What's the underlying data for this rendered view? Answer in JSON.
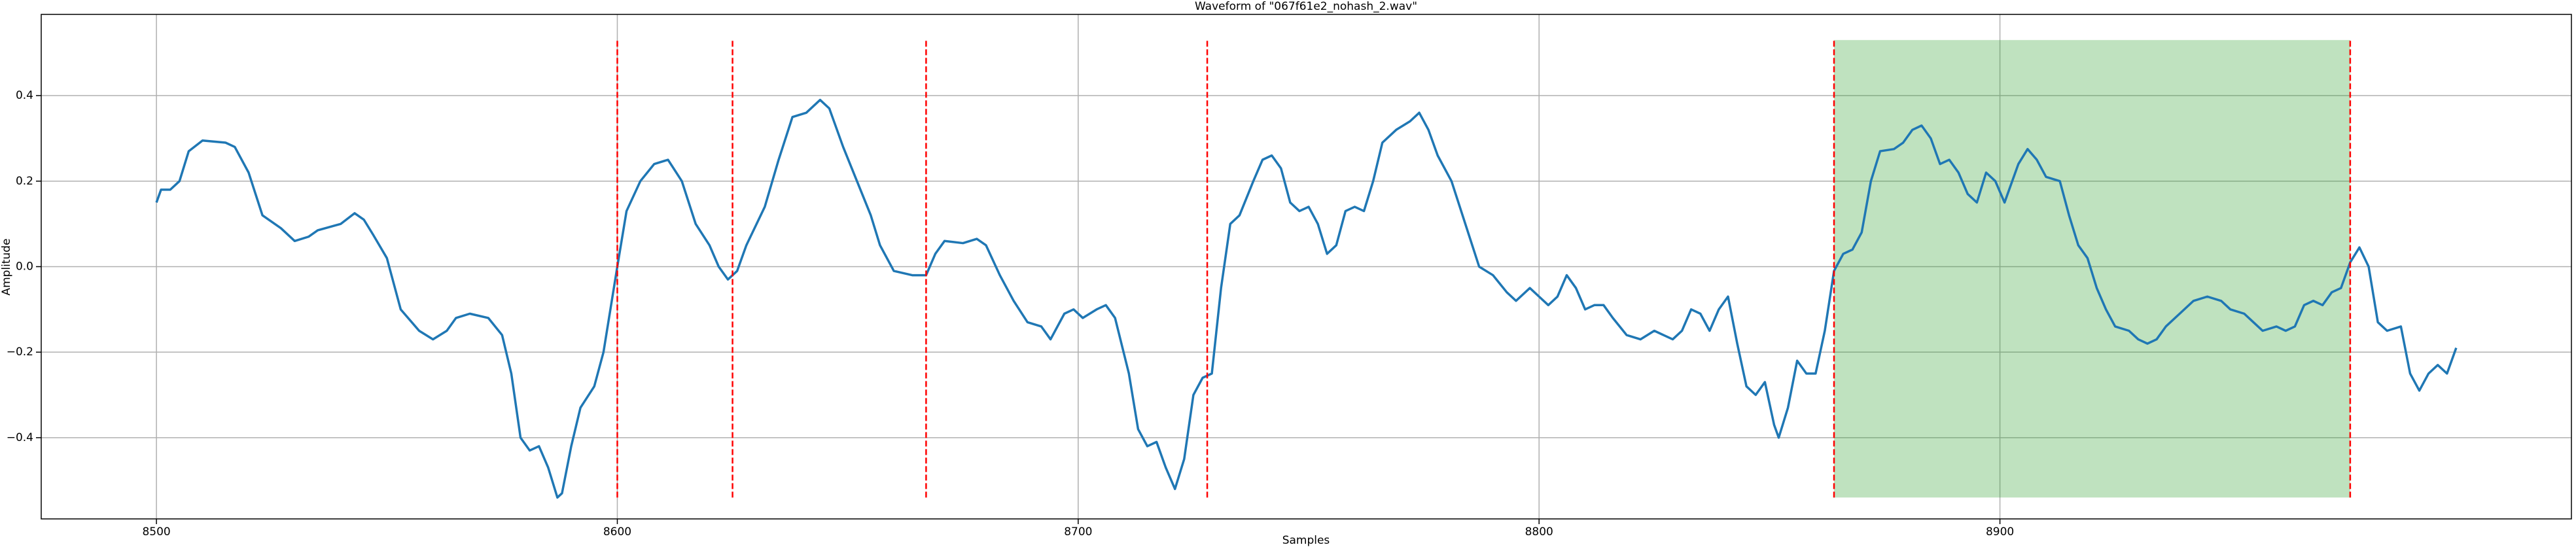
{
  "chart_data": {
    "type": "line",
    "title": "Waveform of \"067f61e2_nohash_2.wav\"",
    "xlabel": "Samples",
    "ylabel": "Amplitude",
    "color": "#1f77b4",
    "x": [
      8500,
      8501,
      8503,
      8505,
      8507,
      8510,
      8515,
      8517,
      8520,
      8523,
      8527,
      8530,
      8533,
      8535,
      8540,
      8543,
      8545,
      8547,
      8550,
      8553,
      8557,
      8560,
      8563,
      8565,
      8568,
      8572,
      8575,
      8577,
      8579,
      8581,
      8583,
      8585,
      8587,
      8588,
      8590,
      8592,
      8595,
      8597,
      8600,
      8602,
      8605,
      8608,
      8611,
      8614,
      8617,
      8620,
      8622,
      8624,
      8626,
      8628,
      8632,
      8635,
      8638,
      8641,
      8644,
      8646,
      8649,
      8652,
      8655,
      8657,
      8660,
      8664,
      8667,
      8669,
      8671,
      8675,
      8678,
      8680,
      8683,
      8686,
      8689,
      8692,
      8694,
      8697,
      8699,
      8701,
      8704,
      8706,
      8708,
      8711,
      8713,
      8715,
      8717,
      8719,
      8721,
      8723,
      8725,
      8727,
      8729,
      8731,
      8733,
      8735,
      8738,
      8740,
      8742,
      8744,
      8746,
      8748,
      8750,
      8752,
      8754,
      8756,
      8758,
      8760,
      8762,
      8764,
      8766,
      8769,
      8772,
      8774,
      8776,
      8778,
      8781,
      8784,
      8787,
      8790,
      8793,
      8795,
      8798,
      8800,
      8802,
      8804,
      8806,
      8808,
      8810,
      8812,
      8814,
      8816,
      8819,
      8822,
      8825,
      8827,
      8829,
      8831,
      8833,
      8835,
      8837,
      8839,
      8841,
      8843,
      8845,
      8847,
      8849,
      8851,
      8852,
      8854,
      8856,
      8858,
      8860,
      8862,
      8864,
      8866,
      8868,
      8870,
      8872,
      8874,
      8877,
      8879,
      8881,
      8883,
      8885,
      8887,
      8889,
      8891,
      8893,
      8895,
      8897,
      8899,
      8901,
      8904,
      8906,
      8908,
      8910,
      8913,
      8915,
      8917,
      8919,
      8921,
      8923,
      8925,
      8928,
      8930,
      8932,
      8934,
      8936,
      8939,
      8942,
      8945,
      8948,
      8950,
      8953,
      8955,
      8957,
      8960,
      8962,
      8964,
      8966,
      8968,
      8970,
      8972,
      8974,
      8976,
      8978,
      8980,
      8982,
      8984,
      8987,
      8989,
      8991,
      8993,
      8995,
      8997,
      8999
    ],
    "values": [
      0.15,
      0.18,
      0.18,
      0.2,
      0.27,
      0.295,
      0.29,
      0.28,
      0.22,
      0.12,
      0.09,
      0.06,
      0.07,
      0.085,
      0.1,
      0.125,
      0.11,
      0.075,
      0.02,
      -0.1,
      -0.15,
      -0.17,
      -0.15,
      -0.12,
      -0.11,
      -0.12,
      -0.16,
      -0.25,
      -0.4,
      -0.43,
      -0.42,
      -0.47,
      -0.54,
      -0.53,
      -0.42,
      -0.33,
      -0.28,
      -0.2,
      0.0,
      0.13,
      0.2,
      0.24,
      0.25,
      0.2,
      0.1,
      0.05,
      0.0,
      -0.03,
      -0.01,
      0.05,
      0.14,
      0.25,
      0.35,
      0.36,
      0.39,
      0.37,
      0.28,
      0.2,
      0.12,
      0.05,
      -0.01,
      -0.02,
      -0.02,
      0.03,
      0.06,
      0.055,
      0.065,
      0.05,
      -0.02,
      -0.08,
      -0.13,
      -0.14,
      -0.17,
      -0.11,
      -0.1,
      -0.12,
      -0.1,
      -0.09,
      -0.12,
      -0.25,
      -0.38,
      -0.42,
      -0.41,
      -0.47,
      -0.52,
      -0.45,
      -0.3,
      -0.26,
      -0.25,
      -0.05,
      0.1,
      0.12,
      0.2,
      0.25,
      0.26,
      0.23,
      0.15,
      0.13,
      0.14,
      0.1,
      0.03,
      0.05,
      0.13,
      0.14,
      0.13,
      0.2,
      0.29,
      0.32,
      0.34,
      0.36,
      0.32,
      0.26,
      0.2,
      0.1,
      0.0,
      -0.02,
      -0.06,
      -0.08,
      -0.05,
      -0.07,
      -0.09,
      -0.07,
      -0.02,
      -0.05,
      -0.1,
      -0.09,
      -0.09,
      -0.12,
      -0.16,
      -0.17,
      -0.15,
      -0.16,
      -0.17,
      -0.15,
      -0.1,
      -0.11,
      -0.15,
      -0.1,
      -0.07,
      -0.18,
      -0.28,
      -0.3,
      -0.27,
      -0.37,
      -0.4,
      -0.33,
      -0.22,
      -0.25,
      -0.25,
      -0.15,
      -0.01,
      0.03,
      0.04,
      0.08,
      0.2,
      0.27,
      0.275,
      0.29,
      0.32,
      0.33,
      0.3,
      0.24,
      0.25,
      0.22,
      0.17,
      0.15,
      0.22,
      0.2,
      0.15,
      0.24,
      0.275,
      0.25,
      0.21,
      0.2,
      0.12,
      0.05,
      0.02,
      -0.05,
      -0.1,
      -0.14,
      -0.15,
      -0.17,
      -0.18,
      -0.17,
      -0.14,
      -0.11,
      -0.08,
      -0.07,
      -0.08,
      -0.1,
      -0.11,
      -0.13,
      -0.15,
      -0.14,
      -0.15,
      -0.14,
      -0.09,
      -0.08,
      -0.09,
      -0.06,
      -0.05,
      0.01,
      0.045,
      0.0,
      -0.13,
      -0.15,
      -0.14,
      -0.25,
      -0.29,
      -0.25,
      -0.23,
      -0.25,
      -0.19
    ],
    "xlim": [
      8475,
      9024
    ],
    "ylim": [
      -0.59,
      0.59
    ],
    "xticks": [
      8500,
      8600,
      8700,
      8800,
      8900
    ],
    "yticks": [
      {
        "value": -0.4,
        "label": "−0.4"
      },
      {
        "value": -0.2,
        "label": "−0.2"
      },
      {
        "value": 0,
        "label": "0.0"
      },
      0.2,
      0.4
    ],
    "grid": true,
    "vlines": {
      "x": [
        8600,
        8625,
        8667,
        8728,
        8864,
        8976
      ],
      "ymin": -0.54,
      "ymax": 0.53,
      "color": "red"
    },
    "span": {
      "x": [
        8864,
        8976
      ],
      "ymin": -0.54,
      "ymax": 0.53,
      "color": "#2ca02c",
      "alpha": 0.3
    }
  }
}
